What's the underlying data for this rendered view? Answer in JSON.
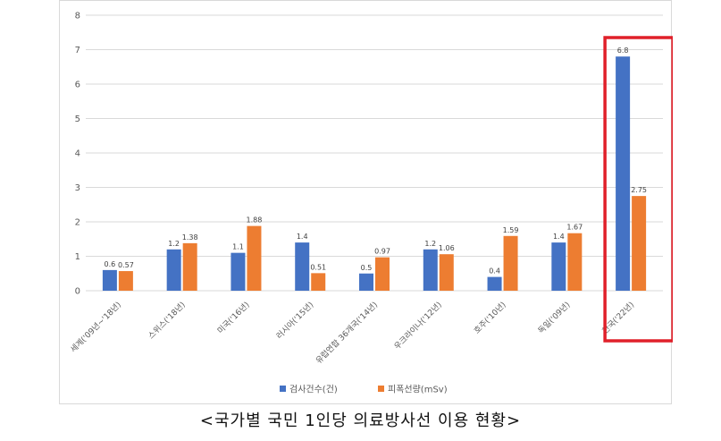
{
  "caption": "<국가별 국민 1인당 의료방사선 이용 현황>",
  "colors": {
    "series1": "#4472C4",
    "series2": "#ED7D31",
    "highlight": "#E0202A",
    "grid": "#d9d9d9"
  },
  "chart_data": {
    "type": "bar",
    "categories": [
      "세계('09년~'18년)",
      "스위스('18년)",
      "미국('16년)",
      "러시아('15년)",
      "유럽연합 36개국('14년)",
      "우크라이나('12년)",
      "호주('10년)",
      "독일('09년)",
      "한국('22년)"
    ],
    "series": [
      {
        "name": "검사건수(건)",
        "values": [
          0.6,
          1.2,
          1.1,
          1.4,
          0.5,
          1.2,
          0.4,
          1.4,
          6.8
        ]
      },
      {
        "name": "피폭선량(mSv)",
        "values": [
          0.57,
          1.38,
          1.88,
          0.51,
          0.97,
          1.06,
          1.59,
          1.67,
          2.75
        ]
      }
    ],
    "data_labels": [
      [
        "0.6",
        "1.2",
        "1.1",
        "1.4",
        "0.5",
        "1.2",
        "0.4",
        "1.4",
        "6.8"
      ],
      [
        "0.57",
        "1.38",
        "1.88",
        "0.51",
        "0.97",
        "1.06",
        "1.59",
        "1.67",
        "2.75"
      ]
    ],
    "yticks": [
      "0",
      "1",
      "2",
      "3",
      "4",
      "5",
      "6",
      "7",
      "8"
    ],
    "ylim": [
      0,
      8
    ],
    "grid": true,
    "legend_position": "bottom",
    "highlighted_category": "한국('22년)"
  }
}
